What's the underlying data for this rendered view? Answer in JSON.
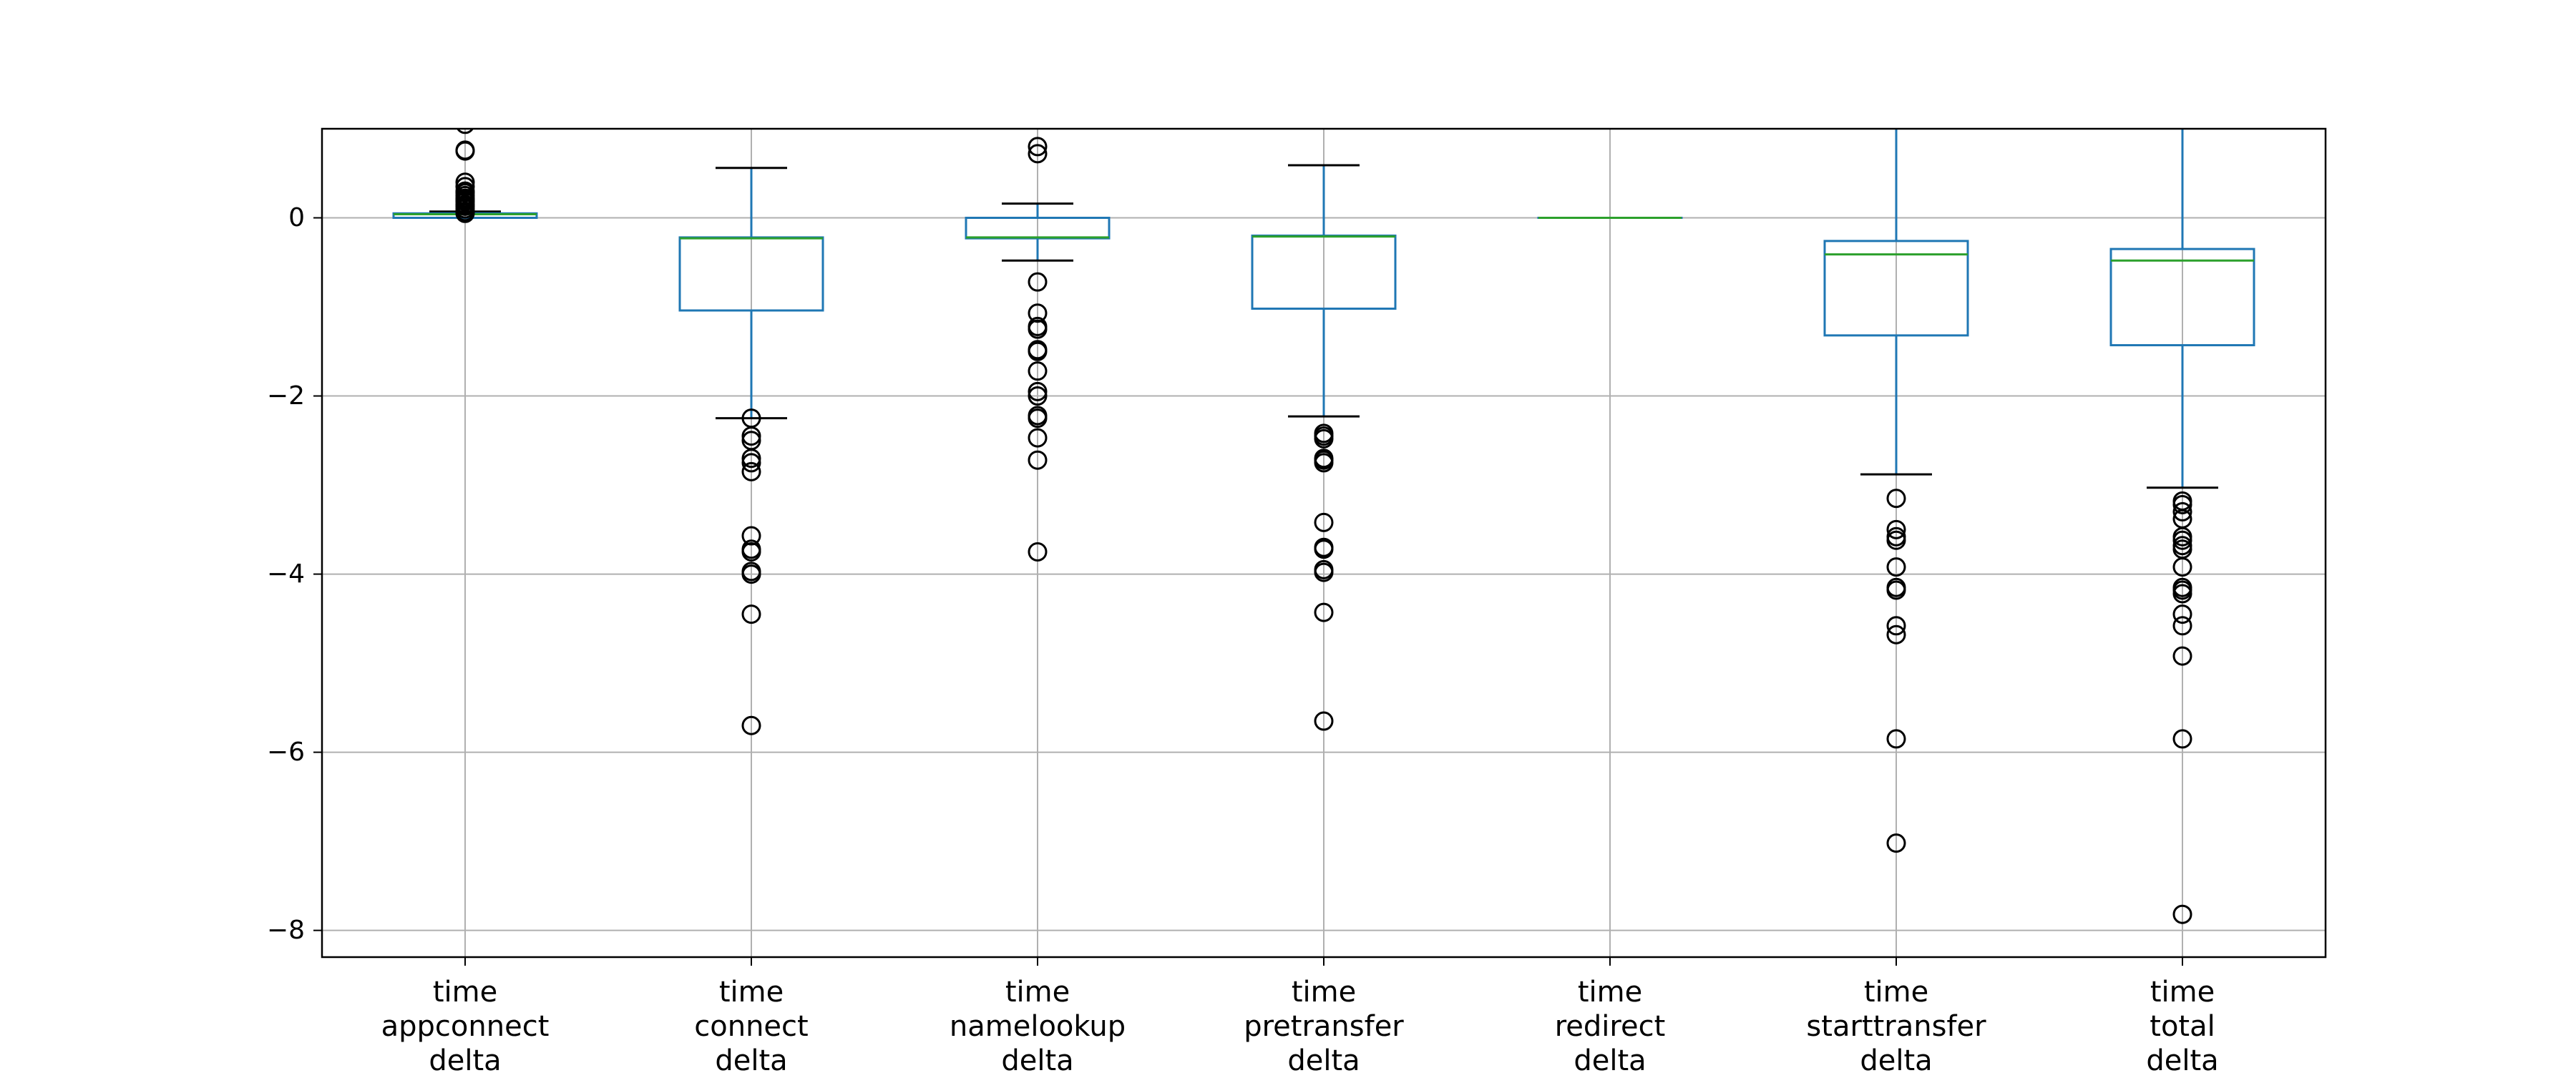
{
  "chart_data": {
    "type": "box",
    "title": "",
    "xlabel": "",
    "ylabel": "",
    "ylim": [
      -8.3,
      1.0
    ],
    "yticks": [
      0,
      -2,
      -4,
      -6,
      -8
    ],
    "ytick_labels": [
      "0",
      "−2",
      "−4",
      "−6",
      "−8"
    ],
    "grid": true,
    "colors": {
      "box": "#1f77b4",
      "median": "#2ca02c",
      "whisker_cap": "#000000",
      "grid": "#b0b0b0",
      "axes": "#000000"
    },
    "series": [
      {
        "label_lines": [
          "time",
          "appconnect",
          "delta"
        ],
        "q1": 0.0,
        "median": 0.04,
        "q3": 0.05,
        "whisker_low": 0.0,
        "whisker_high": 0.07,
        "outliers": [
          0.05,
          0.07,
          0.1,
          0.13,
          0.15,
          0.18,
          0.2,
          0.22,
          0.25,
          0.28,
          0.3,
          0.35,
          0.4,
          0.75,
          0.76,
          1.05
        ]
      },
      {
        "label_lines": [
          "time",
          "connect",
          "delta"
        ],
        "q1": -1.04,
        "median": -0.23,
        "q3": -0.22,
        "whisker_low": -2.25,
        "whisker_high": 0.56,
        "outliers": [
          -2.25,
          -2.45,
          -2.5,
          -2.7,
          -2.75,
          -2.85,
          -3.57,
          -3.72,
          -3.75,
          -3.97,
          -4.0,
          -4.45,
          -5.7
        ]
      },
      {
        "label_lines": [
          "time",
          "namelookup",
          "delta"
        ],
        "q1": -0.23,
        "median": -0.22,
        "q3": 0.0,
        "whisker_low": -0.48,
        "whisker_high": 0.16,
        "outliers": [
          0.8,
          0.72,
          -0.72,
          -1.07,
          -1.22,
          -1.25,
          -1.48,
          -1.5,
          -1.72,
          -1.95,
          -2.0,
          -2.22,
          -2.25,
          -2.47,
          -2.72,
          -3.75
        ]
      },
      {
        "label_lines": [
          "time",
          "pretransfer",
          "delta"
        ],
        "q1": -1.02,
        "median": -0.21,
        "q3": -0.2,
        "whisker_low": -2.23,
        "whisker_high": 0.59,
        "outliers": [
          -2.42,
          -2.45,
          -2.48,
          -2.7,
          -2.72,
          -2.75,
          -3.42,
          -3.7,
          -3.72,
          -3.95,
          -3.98,
          -4.43,
          -5.65
        ]
      },
      {
        "label_lines": [
          "time",
          "redirect",
          "delta"
        ],
        "q1": 0.0,
        "median": 0.0,
        "q3": 0.0,
        "whisker_low": 0.0,
        "whisker_high": 0.0,
        "outliers": []
      },
      {
        "label_lines": [
          "time",
          "starttransfer",
          "delta"
        ],
        "q1": -1.32,
        "median": -0.41,
        "q3": -0.26,
        "whisker_low": -2.88,
        "whisker_high": 1.05,
        "outliers": [
          -3.15,
          -3.5,
          -3.58,
          -3.62,
          -3.92,
          -4.15,
          -4.18,
          -4.58,
          -4.68,
          -5.85,
          -7.02
        ]
      },
      {
        "label_lines": [
          "time",
          "total",
          "delta"
        ],
        "q1": -1.43,
        "median": -0.48,
        "q3": -0.35,
        "whisker_low": -3.03,
        "whisker_high": 1.05,
        "outliers": [
          -3.18,
          -3.22,
          -3.3,
          -3.38,
          -3.58,
          -3.62,
          -3.68,
          -3.72,
          -3.92,
          -4.15,
          -4.18,
          -4.22,
          -4.45,
          -4.58,
          -4.92,
          -5.85,
          -7.82
        ]
      }
    ]
  }
}
